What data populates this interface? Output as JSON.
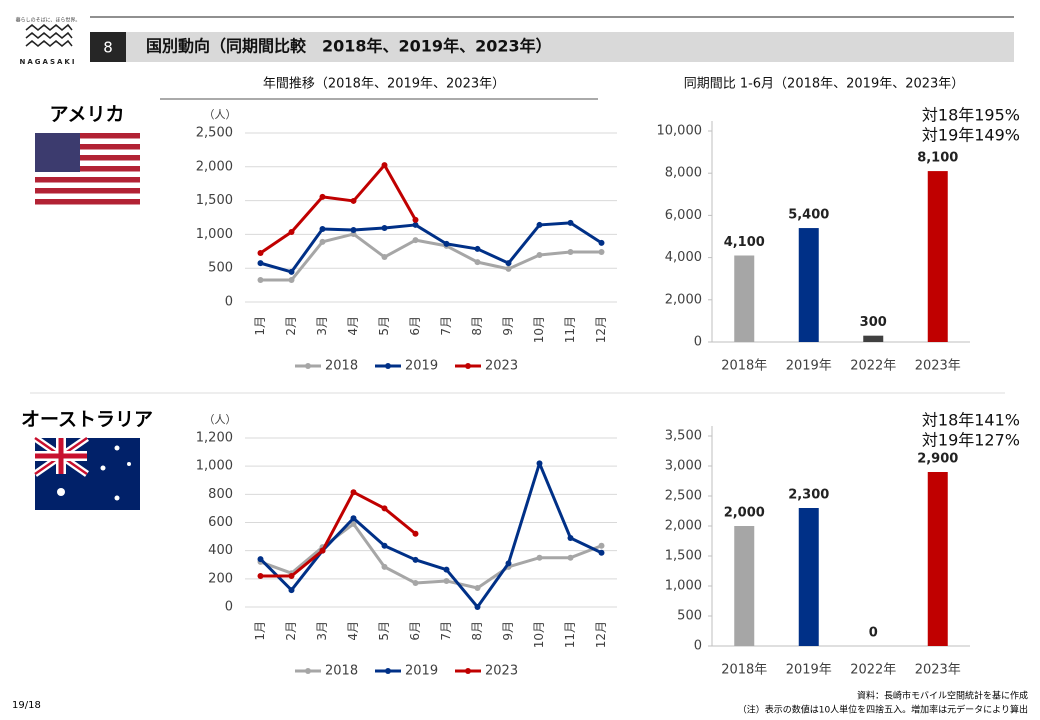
{
  "logo": {
    "tagline": "暮らしのそばに、ほら世界。",
    "name": "NAGASAKI"
  },
  "header": {
    "number": "8",
    "title": "国別動向（同期間比較　2018年、2019年、2023年）"
  },
  "subtitles": [
    "年間推移（2018年、2019年、2023年）",
    "同期間比 1-6月（2018年、2019年、2023年）"
  ],
  "countries": [
    "アメリカ",
    "オーストラリア"
  ],
  "footer": {
    "page": "19/18",
    "source": "資料：長崎市モバイル空間統計を基に作成",
    "note": "（注）表示の数値は10人単位を四捨五入。増加率は元データにより算出"
  },
  "chart_data": [
    {
      "type": "line",
      "y_label": "（人）",
      "grid": true,
      "legend": "bottom",
      "categories": [
        "1月",
        "2月",
        "3月",
        "4月",
        "5月",
        "6月",
        "7月",
        "8月",
        "9月",
        "10月",
        "11月",
        "12月"
      ],
      "ylim": [
        0,
        2500
      ],
      "yticks": [
        0,
        500,
        {
          "value": 1000,
          "label": "1,000"
        },
        {
          "value": 1500,
          "label": "1,500"
        },
        {
          "value": 2000,
          "label": "2,000"
        },
        {
          "value": 2500,
          "label": "2,500"
        }
      ],
      "series": [
        {
          "name": "2018",
          "color": "#a6a6a6",
          "values": [
            325,
            325,
            890,
            1005,
            665,
            915,
            830,
            590,
            490,
            695,
            740,
            740
          ]
        },
        {
          "name": "2019",
          "color": "#003087",
          "values": [
            575,
            445,
            1080,
            1065,
            1095,
            1140,
            860,
            785,
            575,
            1140,
            1170,
            875
          ]
        },
        {
          "name": "2023",
          "color": "#c00000",
          "values": [
            725,
            1035,
            1555,
            1495,
            2025,
            1215,
            null,
            null,
            null,
            null,
            null,
            null
          ]
        }
      ]
    },
    {
      "type": "bar",
      "grid": false,
      "categories": [
        "2018年",
        "2019年",
        "2022年",
        "2023年"
      ],
      "values": [
        4100,
        5400,
        300,
        8100
      ],
      "value_labels": [
        "4,100",
        "5,400",
        "300",
        "8,100"
      ],
      "colors": [
        "#a6a6a6",
        "#003087",
        "#404040",
        "#c00000"
      ],
      "ylim": [
        0,
        10000
      ],
      "yticks": [
        0,
        {
          "value": 2000,
          "label": "2,000"
        },
        {
          "value": 4000,
          "label": "4,000"
        },
        {
          "value": 6000,
          "label": "6,000"
        },
        {
          "value": 8000,
          "label": "8,000"
        },
        {
          "value": 10000,
          "label": "10,000"
        }
      ],
      "annotations": [
        "対18年195%",
        "対19年149%"
      ]
    },
    {
      "type": "line",
      "y_label": "（人）",
      "grid": true,
      "legend": "bottom",
      "categories": [
        "1月",
        "2月",
        "3月",
        "4月",
        "5月",
        "6月",
        "7月",
        "8月",
        "9月",
        "10月",
        "11月",
        "12月"
      ],
      "ylim": [
        0,
        1200
      ],
      "yticks": [
        0,
        200,
        400,
        600,
        800,
        {
          "value": 1000,
          "label": "1,000"
        },
        {
          "value": 1200,
          "label": "1,200"
        }
      ],
      "series": [
        {
          "name": "2018",
          "color": "#a6a6a6",
          "values": [
            320,
            240,
            425,
            590,
            285,
            170,
            185,
            135,
            285,
            350,
            350,
            435
          ]
        },
        {
          "name": "2019",
          "color": "#003087",
          "values": [
            340,
            120,
            400,
            630,
            435,
            335,
            265,
            0,
            310,
            1020,
            490,
            385
          ]
        },
        {
          "name": "2023",
          "color": "#c00000",
          "values": [
            220,
            220,
            400,
            815,
            700,
            520,
            null,
            null,
            null,
            null,
            null,
            null
          ]
        }
      ]
    },
    {
      "type": "bar",
      "grid": false,
      "categories": [
        "2018年",
        "2019年",
        "2022年",
        "2023年"
      ],
      "values": [
        2000,
        2300,
        0,
        2900
      ],
      "value_labels": [
        "2,000",
        "2,300",
        "0",
        "2,900"
      ],
      "colors": [
        "#a6a6a6",
        "#003087",
        "#404040",
        "#c00000"
      ],
      "ylim": [
        0,
        3500
      ],
      "yticks": [
        0,
        500,
        {
          "value": 1000,
          "label": "1,000"
        },
        {
          "value": 1500,
          "label": "1,500"
        },
        {
          "value": 2000,
          "label": "2,000"
        },
        {
          "value": 2500,
          "label": "2,500"
        },
        {
          "value": 3000,
          "label": "3,000"
        },
        {
          "value": 3500,
          "label": "3,500"
        }
      ],
      "annotations": [
        "対18年141%",
        "対19年127%"
      ]
    }
  ]
}
